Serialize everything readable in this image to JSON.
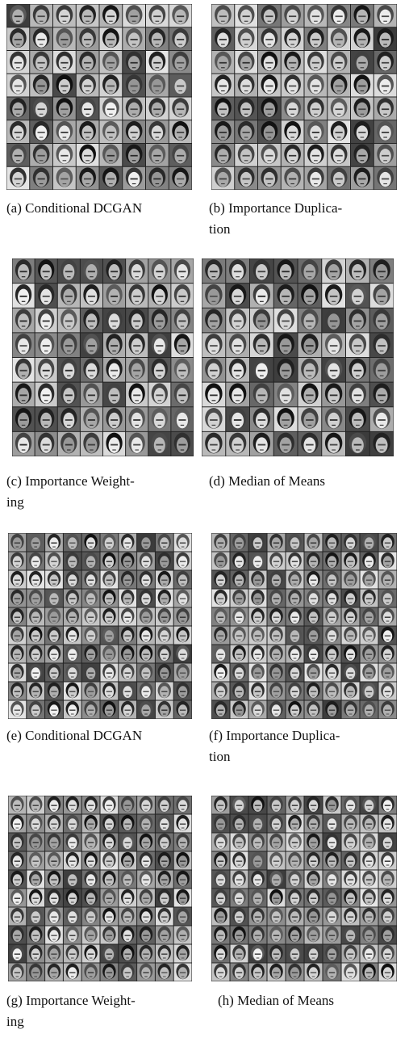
{
  "figure": {
    "panels": [
      {
        "caption_lines": [
          "(a) Conditional DCGAN"
        ],
        "grid": 8
      },
      {
        "caption_lines": [
          "(b) Importance Duplica-",
          "tion"
        ],
        "grid": 8
      },
      {
        "caption_lines": [
          "(c) Importance Weight-",
          "ing"
        ],
        "grid": 8
      },
      {
        "caption_lines": [
          "(d) Median of Means"
        ],
        "grid": 8
      },
      {
        "caption_lines": [
          "(e) Conditional DCGAN"
        ],
        "grid": 10
      },
      {
        "caption_lines": [
          "(f) Importance Duplica-",
          "tion"
        ],
        "grid": 10
      },
      {
        "caption_lines": [
          "(g) Importance Weight-",
          "ing"
        ],
        "grid": 10
      },
      {
        "caption_lines": [
          "(h) Median of Means"
        ],
        "grid": 10
      }
    ]
  }
}
